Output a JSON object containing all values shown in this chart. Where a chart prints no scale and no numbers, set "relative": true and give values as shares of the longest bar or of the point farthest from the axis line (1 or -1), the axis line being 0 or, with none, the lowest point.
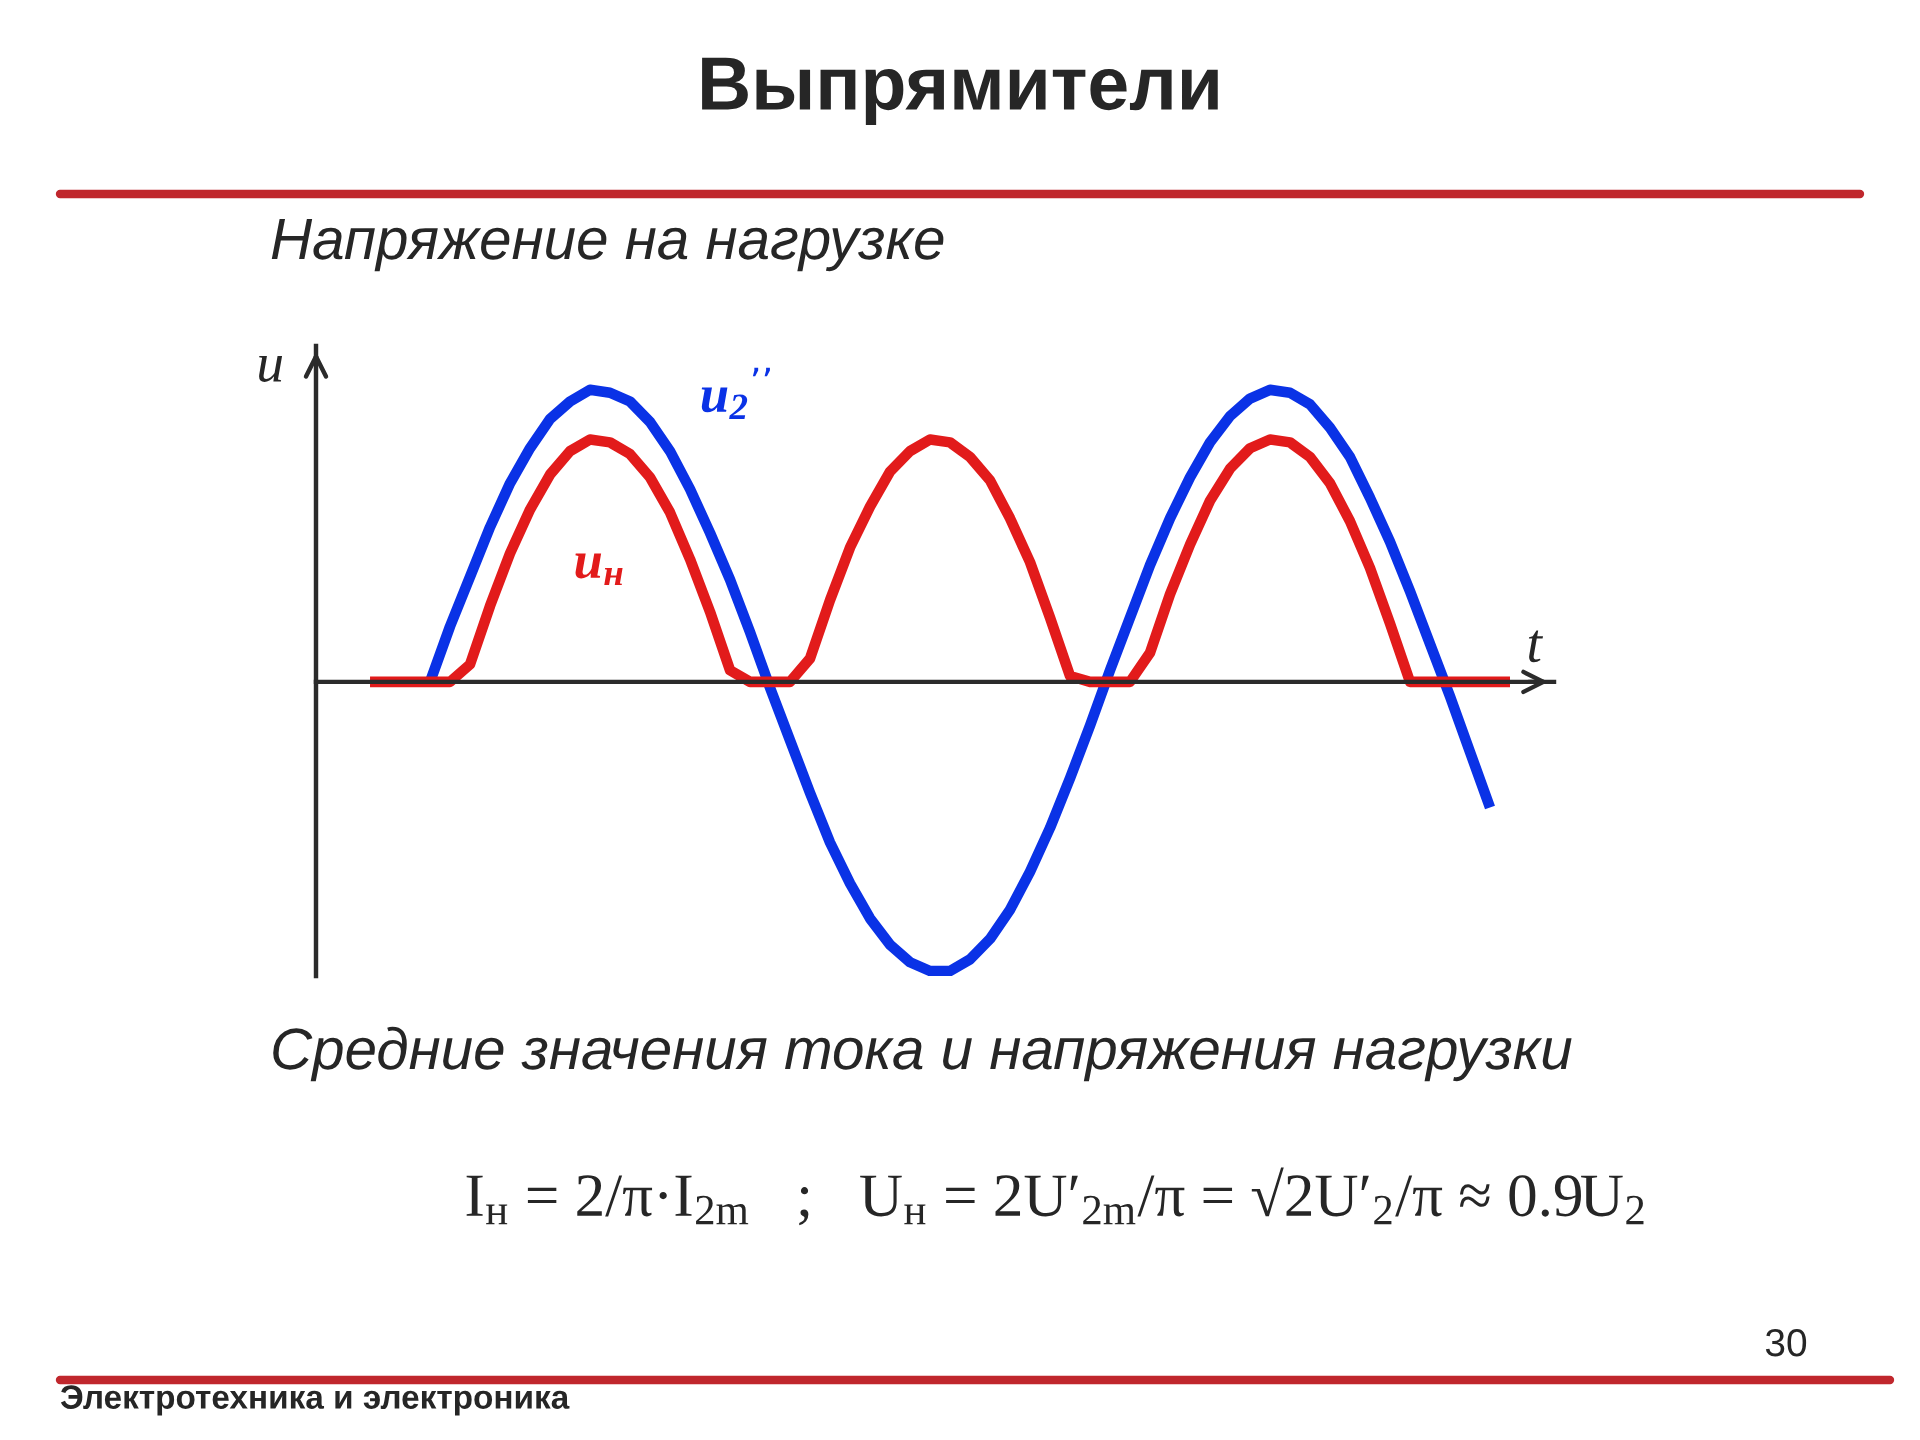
{
  "chart_data": {
    "type": "line",
    "title": "Выпрямители",
    "subtitle": "Напряжение на нагрузке",
    "xlabel": "t",
    "ylabel": "u",
    "relative": true,
    "categories": [
      null,
      null,
      null,
      null,
      null,
      null,
      null,
      null,
      null,
      null,
      null,
      null,
      null,
      null,
      null,
      null,
      null,
      null,
      null,
      null,
      null,
      null,
      null,
      null,
      null,
      null,
      null,
      null,
      null,
      null,
      null,
      null,
      null,
      null,
      null,
      null,
      null,
      null,
      null,
      null,
      null,
      null,
      null,
      null,
      null,
      null,
      null,
      null,
      null,
      null,
      null,
      null,
      null,
      null,
      null,
      null,
      null,
      null
    ],
    "series": [
      {
        "name": "u$_{2}$$^{’’}$",
        "color": "#0a32e6",
        "values": [
          null,
          null,
          null,
          0,
          0.19,
          0.36,
          0.53,
          0.68,
          0.8,
          0.9,
          0.96,
          1,
          0.99,
          0.96,
          0.89,
          0.79,
          0.66,
          0.51,
          0.35,
          0.17,
          -0.02,
          -0.2,
          -0.38,
          -0.55,
          -0.69,
          -0.81,
          -0.9,
          -0.96,
          -0.99,
          -0.99,
          -0.95,
          -0.88,
          -0.78,
          -0.65,
          -0.5,
          -0.33,
          -0.15,
          0.04,
          0.22,
          0.4,
          0.56,
          0.7,
          0.82,
          0.91,
          0.97,
          1,
          0.99,
          0.95,
          0.87,
          0.77,
          0.63,
          0.48,
          0.31,
          0.13,
          -0.05,
          -0.24,
          -0.43,
          null
        ]
      },
      {
        "name": "u$_{н}$",
        "color": "#e21b1b",
        "values": [
          0,
          0,
          0,
          0,
          0,
          0.06,
          0.26,
          0.44,
          0.59,
          0.71,
          0.79,
          0.83,
          0.82,
          0.78,
          0.7,
          0.58,
          0.42,
          0.24,
          0.04,
          0,
          0,
          0,
          0.08,
          0.28,
          0.46,
          0.6,
          0.72,
          0.79,
          0.83,
          0.82,
          0.77,
          0.69,
          0.56,
          0.41,
          0.22,
          0.02,
          0,
          0,
          0,
          0.1,
          0.3,
          0.47,
          0.62,
          0.73,
          0.8,
          0.83,
          0.82,
          0.77,
          0.68,
          0.55,
          0.39,
          0.2,
          0,
          0,
          0,
          0,
          0,
          0
        ]
      }
    ],
    "annotations": [
      "Средние значения тока и напряжения нагрузки",
      "I$_{н}$ = 2/π·I$_{2m}$   ;   U$_{н}$ = 2U′$_{2m}$/π = √2U′$_{2}$/π ≈ 0.9U$_{2}$",
      "Электротехника и электроника",
      "30"
    ]
  }
}
